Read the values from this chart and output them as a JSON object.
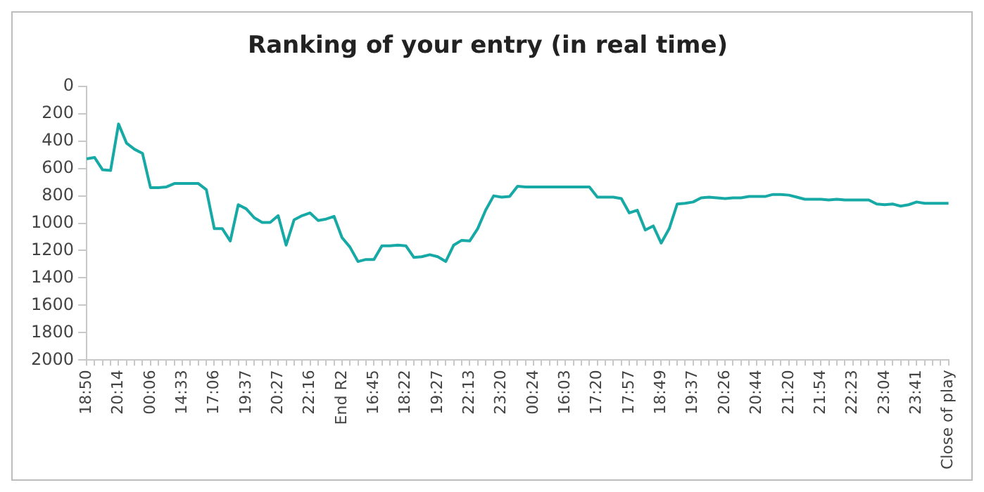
{
  "chart_data": {
    "type": "line",
    "title": "Ranking of your entry (in real time)",
    "categories": [
      "18:50",
      null,
      null,
      null,
      "20:14",
      null,
      null,
      null,
      "00:06",
      null,
      null,
      null,
      "14:33",
      null,
      null,
      null,
      "17:06",
      null,
      null,
      null,
      "19:37",
      null,
      null,
      null,
      "20:27",
      null,
      null,
      null,
      "22:16",
      null,
      null,
      null,
      "End R2",
      null,
      null,
      null,
      "16:45",
      null,
      null,
      null,
      "18:22",
      null,
      null,
      null,
      "19:27",
      null,
      null,
      null,
      "22:13",
      null,
      null,
      null,
      "23:20",
      null,
      null,
      null,
      "00:24",
      null,
      null,
      null,
      "16:03",
      null,
      null,
      null,
      "17:20",
      null,
      null,
      null,
      "17:57",
      null,
      null,
      null,
      "18:49",
      null,
      null,
      null,
      "19:37",
      null,
      null,
      null,
      "20:26",
      null,
      null,
      null,
      "20:44",
      null,
      null,
      null,
      "21:20",
      null,
      null,
      null,
      "21:54",
      null,
      null,
      null,
      "22:23",
      null,
      null,
      null,
      "23:04",
      null,
      null,
      null,
      "23:41",
      null,
      null,
      null,
      "Close of play"
    ],
    "series": [
      {
        "color": "#17a9a5",
        "values": [
          530,
          520,
          610,
          615,
          275,
          415,
          460,
          490,
          740,
          740,
          735,
          710,
          710,
          710,
          710,
          755,
          1040,
          1040,
          1130,
          865,
          895,
          960,
          995,
          995,
          945,
          1160,
          975,
          945,
          925,
          980,
          970,
          950,
          1105,
          1175,
          1280,
          1265,
          1265,
          1165,
          1165,
          1160,
          1165,
          1250,
          1245,
          1230,
          1245,
          1280,
          1160,
          1125,
          1130,
          1040,
          905,
          800,
          810,
          805,
          730,
          735,
          735,
          735,
          735,
          735,
          735,
          735,
          735,
          735,
          810,
          810,
          810,
          820,
          925,
          905,
          1050,
          1020,
          1145,
          1040,
          860,
          855,
          845,
          815,
          810,
          815,
          820,
          815,
          815,
          805,
          805,
          805,
          790,
          790,
          795,
          810,
          825,
          825,
          825,
          830,
          825,
          830,
          830,
          830,
          830,
          860,
          865,
          860,
          875,
          865,
          845,
          855,
          855,
          855,
          855
        ]
      }
    ],
    "ylim": [
      2000,
      0
    ],
    "yticks": [
      0,
      200,
      400,
      600,
      800,
      1000,
      1200,
      1400,
      1600,
      1800,
      2000
    ],
    "grid": false,
    "legend": false,
    "marker": "none",
    "line_style": "solid"
  }
}
